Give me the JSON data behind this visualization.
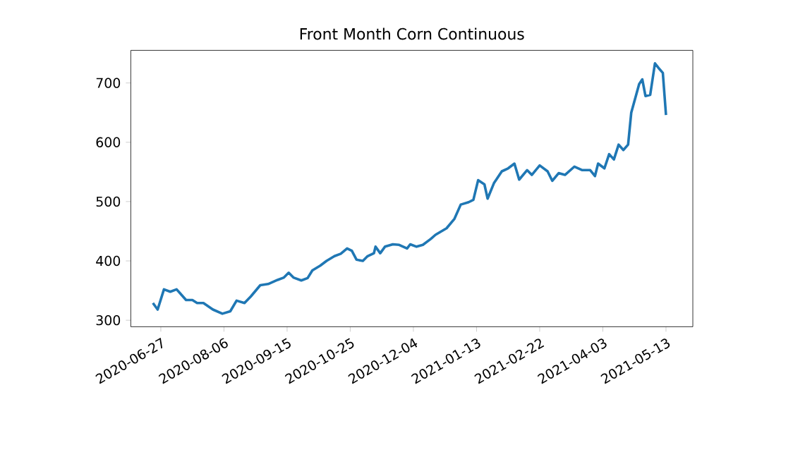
{
  "chart_data": {
    "type": "line",
    "title": "Front Month Corn Continuous",
    "x": [
      "2020-06-22",
      "2020-06-25",
      "2020-06-29",
      "2020-07-03",
      "2020-07-07",
      "2020-07-13",
      "2020-07-17",
      "2020-07-20",
      "2020-07-24",
      "2020-07-30",
      "2020-08-05",
      "2020-08-10",
      "2020-08-14",
      "2020-08-19",
      "2020-08-23",
      "2020-08-29",
      "2020-09-03",
      "2020-09-09",
      "2020-09-13",
      "2020-09-16",
      "2020-09-19",
      "2020-09-24",
      "2020-09-28",
      "2020-10-01",
      "2020-10-06",
      "2020-10-10",
      "2020-10-15",
      "2020-10-19",
      "2020-10-23",
      "2020-10-26",
      "2020-10-29",
      "2020-11-02",
      "2020-11-05",
      "2020-11-09",
      "2020-11-10",
      "2020-11-13",
      "2020-11-16",
      "2020-11-21",
      "2020-11-25",
      "2020-11-30",
      "2020-12-02",
      "2020-12-06",
      "2020-12-10",
      "2020-12-15",
      "2020-12-18",
      "2020-12-25",
      "2020-12-30",
      "2021-01-03",
      "2021-01-08",
      "2021-01-11",
      "2021-01-14",
      "2021-01-18",
      "2021-01-20",
      "2021-01-24",
      "2021-01-29",
      "2021-02-02",
      "2021-02-06",
      "2021-02-09",
      "2021-02-14",
      "2021-02-17",
      "2021-02-22",
      "2021-02-27",
      "2021-03-02",
      "2021-03-06",
      "2021-03-10",
      "2021-03-16",
      "2021-03-21",
      "2021-03-26",
      "2021-03-29",
      "2021-03-31",
      "2021-04-04",
      "2021-04-07",
      "2021-04-10",
      "2021-04-13",
      "2021-04-16",
      "2021-04-19",
      "2021-04-21",
      "2021-04-26",
      "2021-04-28",
      "2021-04-30",
      "2021-05-03",
      "2021-05-06",
      "2021-05-09",
      "2021-05-11",
      "2021-05-13"
    ],
    "series": [
      {
        "color": "#1f77b4",
        "values": [
          329,
          318,
          352,
          348,
          352,
          334,
          334,
          329,
          329,
          318,
          311,
          315,
          333,
          329,
          340,
          359,
          361,
          368,
          372,
          380,
          372,
          367,
          371,
          384,
          392,
          400,
          408,
          412,
          421,
          417,
          402,
          400,
          408,
          413,
          424,
          413,
          424,
          428,
          427,
          421,
          428,
          424,
          427,
          437,
          444,
          455,
          471,
          495,
          499,
          503,
          536,
          529,
          505,
          531,
          551,
          556,
          564,
          537,
          553,
          545,
          561,
          551,
          535,
          548,
          545,
          559,
          553,
          553,
          543,
          564,
          556,
          580,
          571,
          596,
          587,
          596,
          650,
          698,
          706,
          678,
          680,
          733,
          723,
          717,
          646
        ]
      }
    ],
    "xlim": [
      "2020-06-08",
      "2021-05-30"
    ],
    "xticks": [
      "2020-06-27",
      "2020-08-06",
      "2020-09-15",
      "2020-10-25",
      "2020-12-04",
      "2021-01-13",
      "2021-02-22",
      "2021-04-03",
      "2021-05-13"
    ],
    "ylim": [
      289,
      755
    ],
    "yticks": [
      300,
      400,
      500,
      600,
      700
    ]
  }
}
